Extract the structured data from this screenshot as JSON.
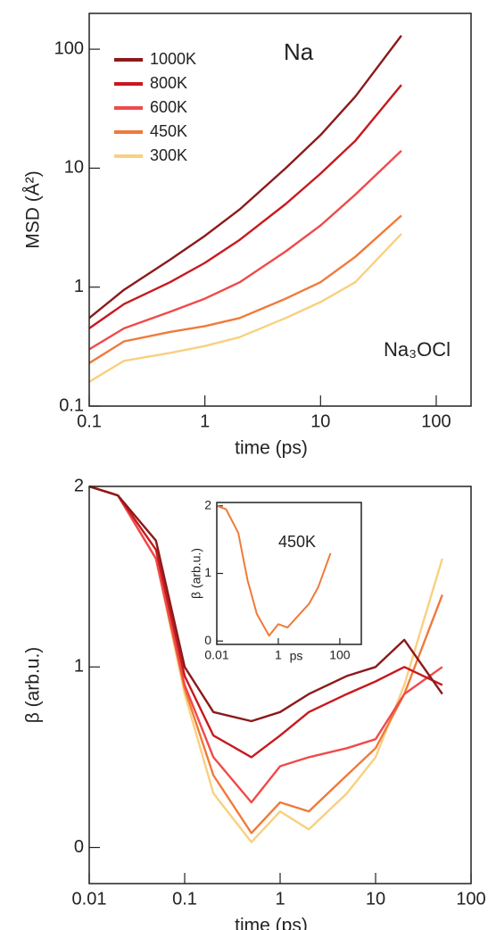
{
  "chart_data": [
    {
      "type": "line",
      "xscale": "log",
      "yscale": "log",
      "xlabel": "time (ps)",
      "ylabel": "MSD (Å²)",
      "annotations": [
        "Na",
        "Na₃OCl"
      ],
      "legend": "upper left",
      "xlim": [
        0.1,
        200
      ],
      "ylim": [
        0.1,
        200
      ],
      "xticks": [
        0.1,
        1,
        10,
        100
      ],
      "yticks": [
        0.1,
        1,
        10,
        100
      ],
      "x": [
        0.1,
        0.2,
        0.5,
        1,
        2,
        5,
        10,
        20,
        50
      ],
      "series": [
        {
          "name": "1000K",
          "color": "#8b1a1a",
          "values": [
            0.55,
            0.95,
            1.7,
            2.7,
            4.5,
            10,
            19,
            40,
            130
          ]
        },
        {
          "name": "800K",
          "color": "#c8191e",
          "values": [
            0.45,
            0.72,
            1.1,
            1.6,
            2.5,
            5,
            9,
            17,
            50
          ]
        },
        {
          "name": "600K",
          "color": "#f04a4a",
          "values": [
            0.3,
            0.45,
            0.62,
            0.8,
            1.1,
            2,
            3.3,
            6,
            14
          ]
        },
        {
          "name": "450K",
          "color": "#f07a3a",
          "values": [
            0.23,
            0.35,
            0.42,
            0.47,
            0.55,
            0.8,
            1.1,
            1.8,
            4
          ]
        },
        {
          "name": "300K",
          "color": "#f9d080",
          "values": [
            0.16,
            0.24,
            0.28,
            0.32,
            0.38,
            0.55,
            0.75,
            1.1,
            2.8
          ]
        }
      ]
    },
    {
      "type": "line",
      "xscale": "log",
      "xlabel": "time (ps)",
      "ylabel": "β (arb.u.)",
      "xlim": [
        0.01,
        100
      ],
      "ylim": [
        -0.2,
        2
      ],
      "xticks": [
        0.01,
        0.1,
        1,
        10,
        100
      ],
      "yticks": [
        0,
        1,
        2
      ],
      "x": [
        0.01,
        0.02,
        0.05,
        0.1,
        0.2,
        0.5,
        1,
        2,
        5,
        10,
        20,
        50
      ],
      "series": [
        {
          "color": "#f9d080",
          "values": [
            2,
            1.95,
            1.6,
            0.85,
            0.3,
            0.03,
            0.2,
            0.1,
            0.3,
            0.5,
            0.9,
            1.6
          ]
        },
        {
          "color": "#f07a3a",
          "values": [
            2,
            1.95,
            1.6,
            0.88,
            0.4,
            0.08,
            0.25,
            0.2,
            0.4,
            0.55,
            0.85,
            1.4
          ]
        },
        {
          "color": "#f04a4a",
          "values": [
            2,
            1.95,
            1.6,
            0.9,
            0.5,
            0.25,
            0.45,
            0.5,
            0.55,
            0.6,
            0.85,
            1.0
          ]
        },
        {
          "color": "#c8191e",
          "values": [
            2,
            1.95,
            1.65,
            0.95,
            0.62,
            0.5,
            0.62,
            0.75,
            0.85,
            0.92,
            1.0,
            0.9
          ]
        },
        {
          "color": "#8b1a1a",
          "values": [
            2,
            1.95,
            1.7,
            1.0,
            0.75,
            0.7,
            0.75,
            0.85,
            0.95,
            1.0,
            1.15,
            0.85
          ]
        }
      ]
    },
    {
      "type": "line",
      "xscale": "log",
      "xlabel": "ps",
      "ylabel": "β (arb.u.)",
      "annotations": [
        "450K"
      ],
      "xlim": [
        0.01,
        500
      ],
      "ylim": [
        -0.05,
        2.05
      ],
      "xticks": [
        0.01,
        1,
        100
      ],
      "yticks": [
        0,
        1,
        2
      ],
      "x": [
        0.01,
        0.02,
        0.05,
        0.1,
        0.2,
        0.5,
        1,
        2,
        5,
        10,
        20,
        50
      ],
      "series": [
        {
          "color": "#f07a3a",
          "values": [
            2,
            1.95,
            1.6,
            0.9,
            0.4,
            0.08,
            0.25,
            0.2,
            0.4,
            0.55,
            0.8,
            1.3
          ]
        }
      ]
    }
  ]
}
